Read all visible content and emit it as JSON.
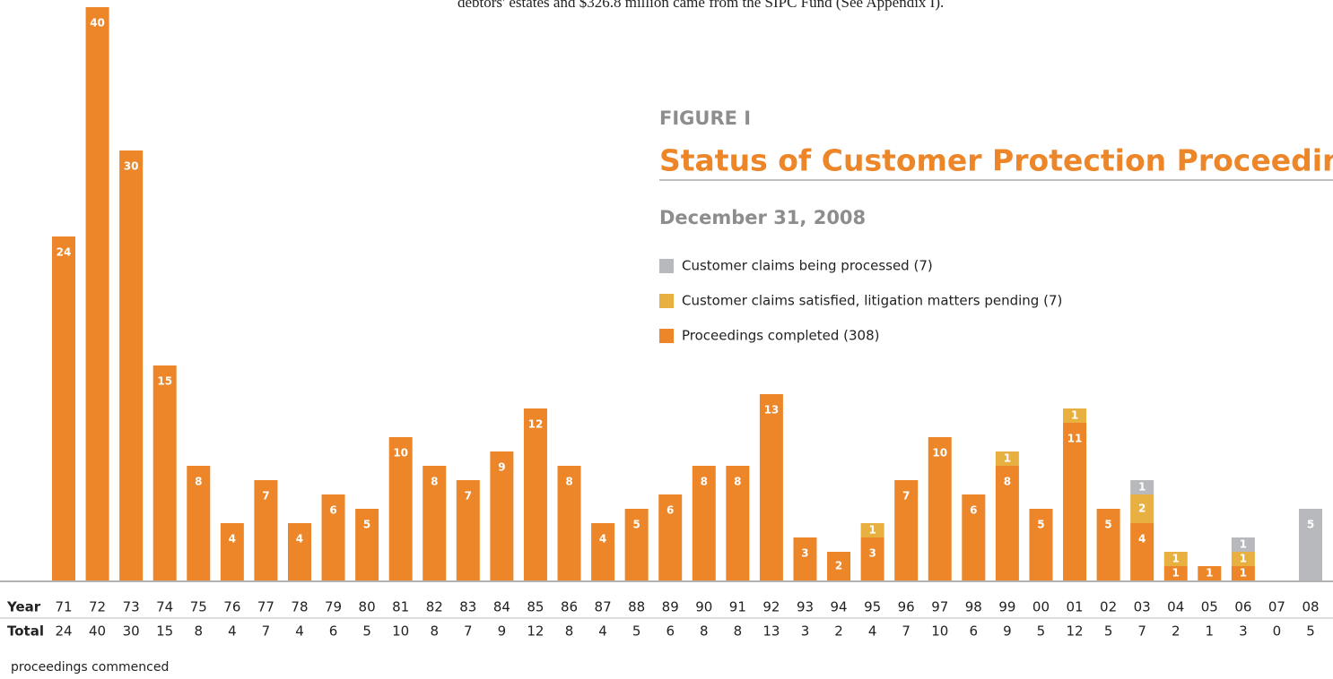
{
  "chart_data": {
    "type": "stacked_bar",
    "intro_text": "debtors' estates and $326.8 million came from the SIPC Fund (See Appendix I).",
    "figure_label": "FIGURE I",
    "title": "Status of Customer Protection Proceedings",
    "subtitle": "December 31, 2008",
    "row_label_year": "Year",
    "row_label_total": "Total",
    "footer": "proceedings commenced",
    "categories": [
      "71",
      "72",
      "73",
      "74",
      "75",
      "76",
      "77",
      "78",
      "79",
      "80",
      "81",
      "82",
      "83",
      "84",
      "85",
      "86",
      "87",
      "88",
      "89",
      "90",
      "91",
      "92",
      "93",
      "94",
      "95",
      "96",
      "97",
      "98",
      "99",
      "00",
      "01",
      "02",
      "03",
      "04",
      "05",
      "06",
      "07",
      "08"
    ],
    "totals": [
      24,
      40,
      30,
      15,
      8,
      4,
      7,
      4,
      6,
      5,
      10,
      8,
      7,
      9,
      12,
      8,
      4,
      5,
      6,
      8,
      8,
      13,
      3,
      2,
      4,
      7,
      10,
      6,
      9,
      5,
      12,
      5,
      7,
      2,
      1,
      3,
      0,
      5
    ],
    "ylim": [
      0,
      40
    ],
    "series": [
      {
        "name": "Proceedings completed (308)",
        "color": "#ec8629",
        "values": [
          24,
          40,
          30,
          15,
          8,
          4,
          7,
          4,
          6,
          5,
          10,
          8,
          7,
          9,
          12,
          8,
          4,
          5,
          6,
          8,
          8,
          13,
          3,
          2,
          3,
          7,
          10,
          6,
          8,
          5,
          11,
          5,
          4,
          1,
          1,
          1,
          0,
          0
        ]
      },
      {
        "name": "Customer claims satisfied, litigation matters pending (7)",
        "color": "#e8b040",
        "values": [
          0,
          0,
          0,
          0,
          0,
          0,
          0,
          0,
          0,
          0,
          0,
          0,
          0,
          0,
          0,
          0,
          0,
          0,
          0,
          0,
          0,
          0,
          0,
          0,
          1,
          0,
          0,
          0,
          1,
          0,
          1,
          0,
          2,
          1,
          0,
          1,
          0,
          0
        ]
      },
      {
        "name": "Customer claims being processed (7)",
        "color": "#b8b9bc",
        "values": [
          0,
          0,
          0,
          0,
          0,
          0,
          0,
          0,
          0,
          0,
          0,
          0,
          0,
          0,
          0,
          0,
          0,
          0,
          0,
          0,
          0,
          0,
          0,
          0,
          0,
          0,
          0,
          0,
          0,
          0,
          0,
          0,
          1,
          0,
          0,
          1,
          0,
          5
        ]
      }
    ]
  }
}
